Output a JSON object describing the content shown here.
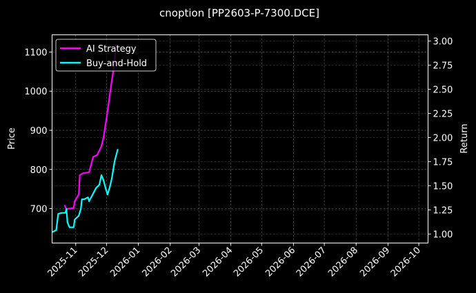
{
  "chart_data": {
    "type": "line",
    "title": "cnoption [PP2603-P-7300.DCE]",
    "ylabel_left": "Price",
    "ylabel_right": "Return",
    "xlabel": "",
    "x_range": [
      "2025-10-09",
      "2026-10-10"
    ],
    "ylim_left": [
      612,
      1144
    ],
    "ylim_right": [
      0.907,
      3.064
    ],
    "x_ticks": [
      "2025-11",
      "2025-12",
      "2026-01",
      "2026-02",
      "2026-03",
      "2026-04",
      "2026-05",
      "2026-06",
      "2026-07",
      "2026-08",
      "2026-09",
      "2026-10"
    ],
    "y_ticks_left": [
      700,
      800,
      900,
      1000,
      1100
    ],
    "y_ticks_right": [
      "1.00",
      "1.25",
      "1.50",
      "1.75",
      "2.00",
      "2.25",
      "2.50",
      "2.75",
      "3.00"
    ],
    "grid": true,
    "legend_position": "top-left",
    "series": [
      {
        "name": "AI Strategy",
        "axis": "right",
        "color": "#ff00ff",
        "points": [
          [
            "2025-10-21",
            1.3
          ],
          [
            "2025-10-23",
            1.26
          ],
          [
            "2025-10-30",
            1.27
          ],
          [
            "2025-10-31",
            1.34
          ],
          [
            "2025-11-04",
            1.41
          ],
          [
            "2025-11-05",
            1.61
          ],
          [
            "2025-11-08",
            1.63
          ],
          [
            "2025-11-14",
            1.64
          ],
          [
            "2025-11-16",
            1.72
          ],
          [
            "2025-11-18",
            1.8
          ],
          [
            "2025-11-22",
            1.82
          ],
          [
            "2025-11-26",
            1.91
          ],
          [
            "2025-11-28",
            2.0
          ],
          [
            "2025-12-01",
            2.2
          ],
          [
            "2025-12-06",
            2.58
          ],
          [
            "2025-12-09",
            2.79
          ],
          [
            "2025-12-10",
            2.96
          ]
        ]
      },
      {
        "name": "Buy-and-Hold",
        "axis": "right",
        "color": "#00ffff",
        "points": [
          [
            "2025-10-09",
            1.02
          ],
          [
            "2025-10-13",
            1.04
          ],
          [
            "2025-10-15",
            1.21
          ],
          [
            "2025-10-19",
            1.22
          ],
          [
            "2025-10-22",
            1.22
          ],
          [
            "2025-10-23",
            1.26
          ],
          [
            "2025-10-24",
            1.12
          ],
          [
            "2025-10-26",
            1.07
          ],
          [
            "2025-10-30",
            1.07
          ],
          [
            "2025-10-31",
            1.15
          ],
          [
            "2025-11-04",
            1.19
          ],
          [
            "2025-11-06",
            1.26
          ],
          [
            "2025-11-07",
            1.36
          ],
          [
            "2025-11-09",
            1.36
          ],
          [
            "2025-11-13",
            1.38
          ],
          [
            "2025-11-14",
            1.34
          ],
          [
            "2025-11-17",
            1.4
          ],
          [
            "2025-11-21",
            1.48
          ],
          [
            "2025-11-24",
            1.51
          ],
          [
            "2025-11-26",
            1.61
          ],
          [
            "2025-11-28",
            1.56
          ],
          [
            "2025-11-30",
            1.48
          ],
          [
            "2025-12-02",
            1.41
          ],
          [
            "2025-12-04",
            1.48
          ],
          [
            "2025-12-06",
            1.57
          ],
          [
            "2025-12-09",
            1.76
          ],
          [
            "2025-12-12",
            1.88
          ]
        ]
      }
    ]
  }
}
